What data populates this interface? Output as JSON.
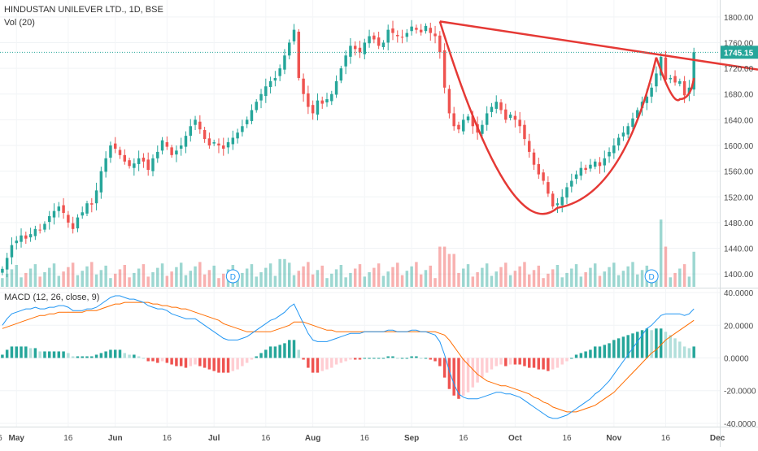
{
  "header": {
    "symbol": "HINDUSTAN UNILEVER LTD., 1D, BSE",
    "volume_label": "Vol (20)"
  },
  "price": {
    "last_label": "1745.15",
    "y_ticks": [
      "1800.00",
      "1760.00",
      "1720.00",
      "1680.00",
      "1640.00",
      "1600.00",
      "1560.00",
      "1520.00",
      "1480.00",
      "1440.00",
      "1400.00"
    ]
  },
  "macd_panel": {
    "label": "MACD (12, 26, close, 9)",
    "y_ticks": [
      "40.0000",
      "20.0000",
      "0.0000",
      "-20.0000",
      "-40.0000"
    ]
  },
  "time_axis": {
    "labels": [
      "16",
      "May",
      "16",
      "Jun",
      "16",
      "Jul",
      "16",
      "Aug",
      "16",
      "Sep",
      "16",
      "Oct",
      "16",
      "Nov",
      "16",
      "Dec"
    ]
  },
  "dividend_marker": "D",
  "colors": {
    "up": "#26a69a",
    "down": "#ef5350",
    "pattern_line": "#e53935",
    "macd_line": "#2196f3",
    "signal_line": "#ff6d00",
    "last_price_badge": "#26a69a"
  },
  "chart_data": [
    {
      "type": "candlestick",
      "title": "HINDUSTAN UNILEVER LTD., 1D, BSE",
      "ylim": [
        1380,
        1820
      ],
      "closes": [
        1408,
        1425,
        1445,
        1452,
        1460,
        1455,
        1462,
        1470,
        1468,
        1478,
        1490,
        1498,
        1505,
        1495,
        1480,
        1470,
        1488,
        1496,
        1510,
        1508,
        1530,
        1560,
        1580,
        1600,
        1595,
        1585,
        1575,
        1568,
        1572,
        1580,
        1575,
        1562,
        1580,
        1590,
        1608,
        1598,
        1585,
        1592,
        1600,
        1615,
        1630,
        1640,
        1625,
        1610,
        1600,
        1605,
        1600,
        1595,
        1605,
        1612,
        1620,
        1630,
        1640,
        1655,
        1668,
        1680,
        1692,
        1700,
        1705,
        1720,
        1740,
        1760,
        1780,
        1705,
        1680,
        1660,
        1650,
        1670,
        1665,
        1672,
        1680,
        1700,
        1720,
        1740,
        1755,
        1750,
        1745,
        1760,
        1770,
        1765,
        1755,
        1760,
        1780,
        1775,
        1770,
        1768,
        1775,
        1785,
        1780,
        1776,
        1786,
        1775,
        1770,
        1745,
        1690,
        1650,
        1630,
        1625,
        1640,
        1645,
        1630,
        1620,
        1632,
        1650,
        1660,
        1668,
        1655,
        1640,
        1648,
        1640,
        1630,
        1610,
        1590,
        1570,
        1555,
        1545,
        1525,
        1505,
        1510,
        1520,
        1535,
        1545,
        1555,
        1565,
        1562,
        1570,
        1575,
        1568,
        1580,
        1590,
        1600,
        1612,
        1620,
        1630,
        1642,
        1655,
        1668,
        1676,
        1690,
        1712,
        1738,
        1702,
        1705,
        1698,
        1700,
        1678,
        1690,
        1745
      ],
      "series": [
        {
          "name": "MACD",
          "values": [
            20,
            24,
            27,
            28,
            29,
            30,
            30,
            31,
            30,
            30,
            31,
            31,
            32,
            32,
            31,
            29,
            29,
            29,
            30,
            30,
            31,
            33,
            35,
            37,
            38,
            38,
            37,
            36,
            36,
            35,
            34,
            32,
            31,
            30,
            30,
            29,
            27,
            26,
            25,
            24,
            24,
            24,
            22,
            20,
            18,
            16,
            14,
            12,
            11,
            11,
            11,
            12,
            13,
            15,
            17,
            19,
            21,
            23,
            24,
            26,
            28,
            31,
            33,
            27,
            21,
            15,
            11,
            10,
            10,
            10,
            11,
            12,
            13,
            14,
            15,
            15,
            15,
            16,
            16,
            16,
            16,
            16,
            17,
            17,
            16,
            16,
            16,
            17,
            17,
            16,
            16,
            15,
            14,
            10,
            2,
            -8,
            -16,
            -22,
            -24,
            -25,
            -25,
            -25,
            -24,
            -23,
            -22,
            -21,
            -21,
            -22,
            -22,
            -23,
            -24,
            -26,
            -28,
            -30,
            -32,
            -34,
            -36,
            -37,
            -37,
            -36,
            -35,
            -33,
            -31,
            -29,
            -27,
            -25,
            -22,
            -20,
            -17,
            -14,
            -10,
            -6,
            -2,
            2,
            6,
            10,
            14,
            18,
            20,
            23,
            26,
            27,
            27,
            27,
            27,
            26,
            27,
            30
          ]
        },
        {
          "name": "Signal",
          "values": [
            18,
            19,
            20,
            21,
            22,
            23,
            24,
            25,
            26,
            26,
            27,
            27,
            28,
            28,
            28,
            28,
            28,
            28,
            29,
            29,
            29,
            30,
            31,
            32,
            33,
            33,
            34,
            34,
            34,
            34,
            34,
            34,
            33,
            33,
            32,
            32,
            31,
            31,
            30,
            30,
            29,
            28,
            27,
            26,
            25,
            24,
            23,
            21,
            20,
            19,
            18,
            17,
            16,
            16,
            16,
            16,
            16,
            16,
            17,
            18,
            19,
            20,
            22,
            22,
            22,
            21,
            20,
            19,
            18,
            17,
            17,
            16,
            16,
            16,
            16,
            16,
            16,
            16,
            16,
            16,
            16,
            16,
            16,
            16,
            16,
            16,
            16,
            16,
            16,
            16,
            16,
            16,
            16,
            15,
            14,
            11,
            7,
            3,
            -1,
            -4,
            -7,
            -10,
            -12,
            -14,
            -15,
            -16,
            -17,
            -17,
            -18,
            -19,
            -20,
            -21,
            -22,
            -24,
            -25,
            -27,
            -28,
            -30,
            -31,
            -32,
            -33,
            -33,
            -33,
            -32,
            -31,
            -30,
            -29,
            -27,
            -25,
            -23,
            -21,
            -18,
            -15,
            -12,
            -9,
            -6,
            -3,
            0,
            3,
            5,
            8,
            11,
            13,
            15,
            17,
            19,
            21,
            23
          ]
        }
      ],
      "volume_ylim": [
        0,
        100
      ],
      "x_labels": [
        "16",
        "May",
        "16",
        "Jun",
        "16",
        "Jul",
        "16",
        "Aug",
        "16",
        "Sep",
        "16",
        "Oct",
        "16",
        "Nov",
        "16",
        "Dec"
      ]
    },
    {
      "type": "line",
      "title": "MACD (12, 26, close, 9)",
      "ylim": [
        -42,
        42
      ],
      "y_ticks": [
        40,
        20,
        0,
        -20,
        -40
      ]
    }
  ]
}
